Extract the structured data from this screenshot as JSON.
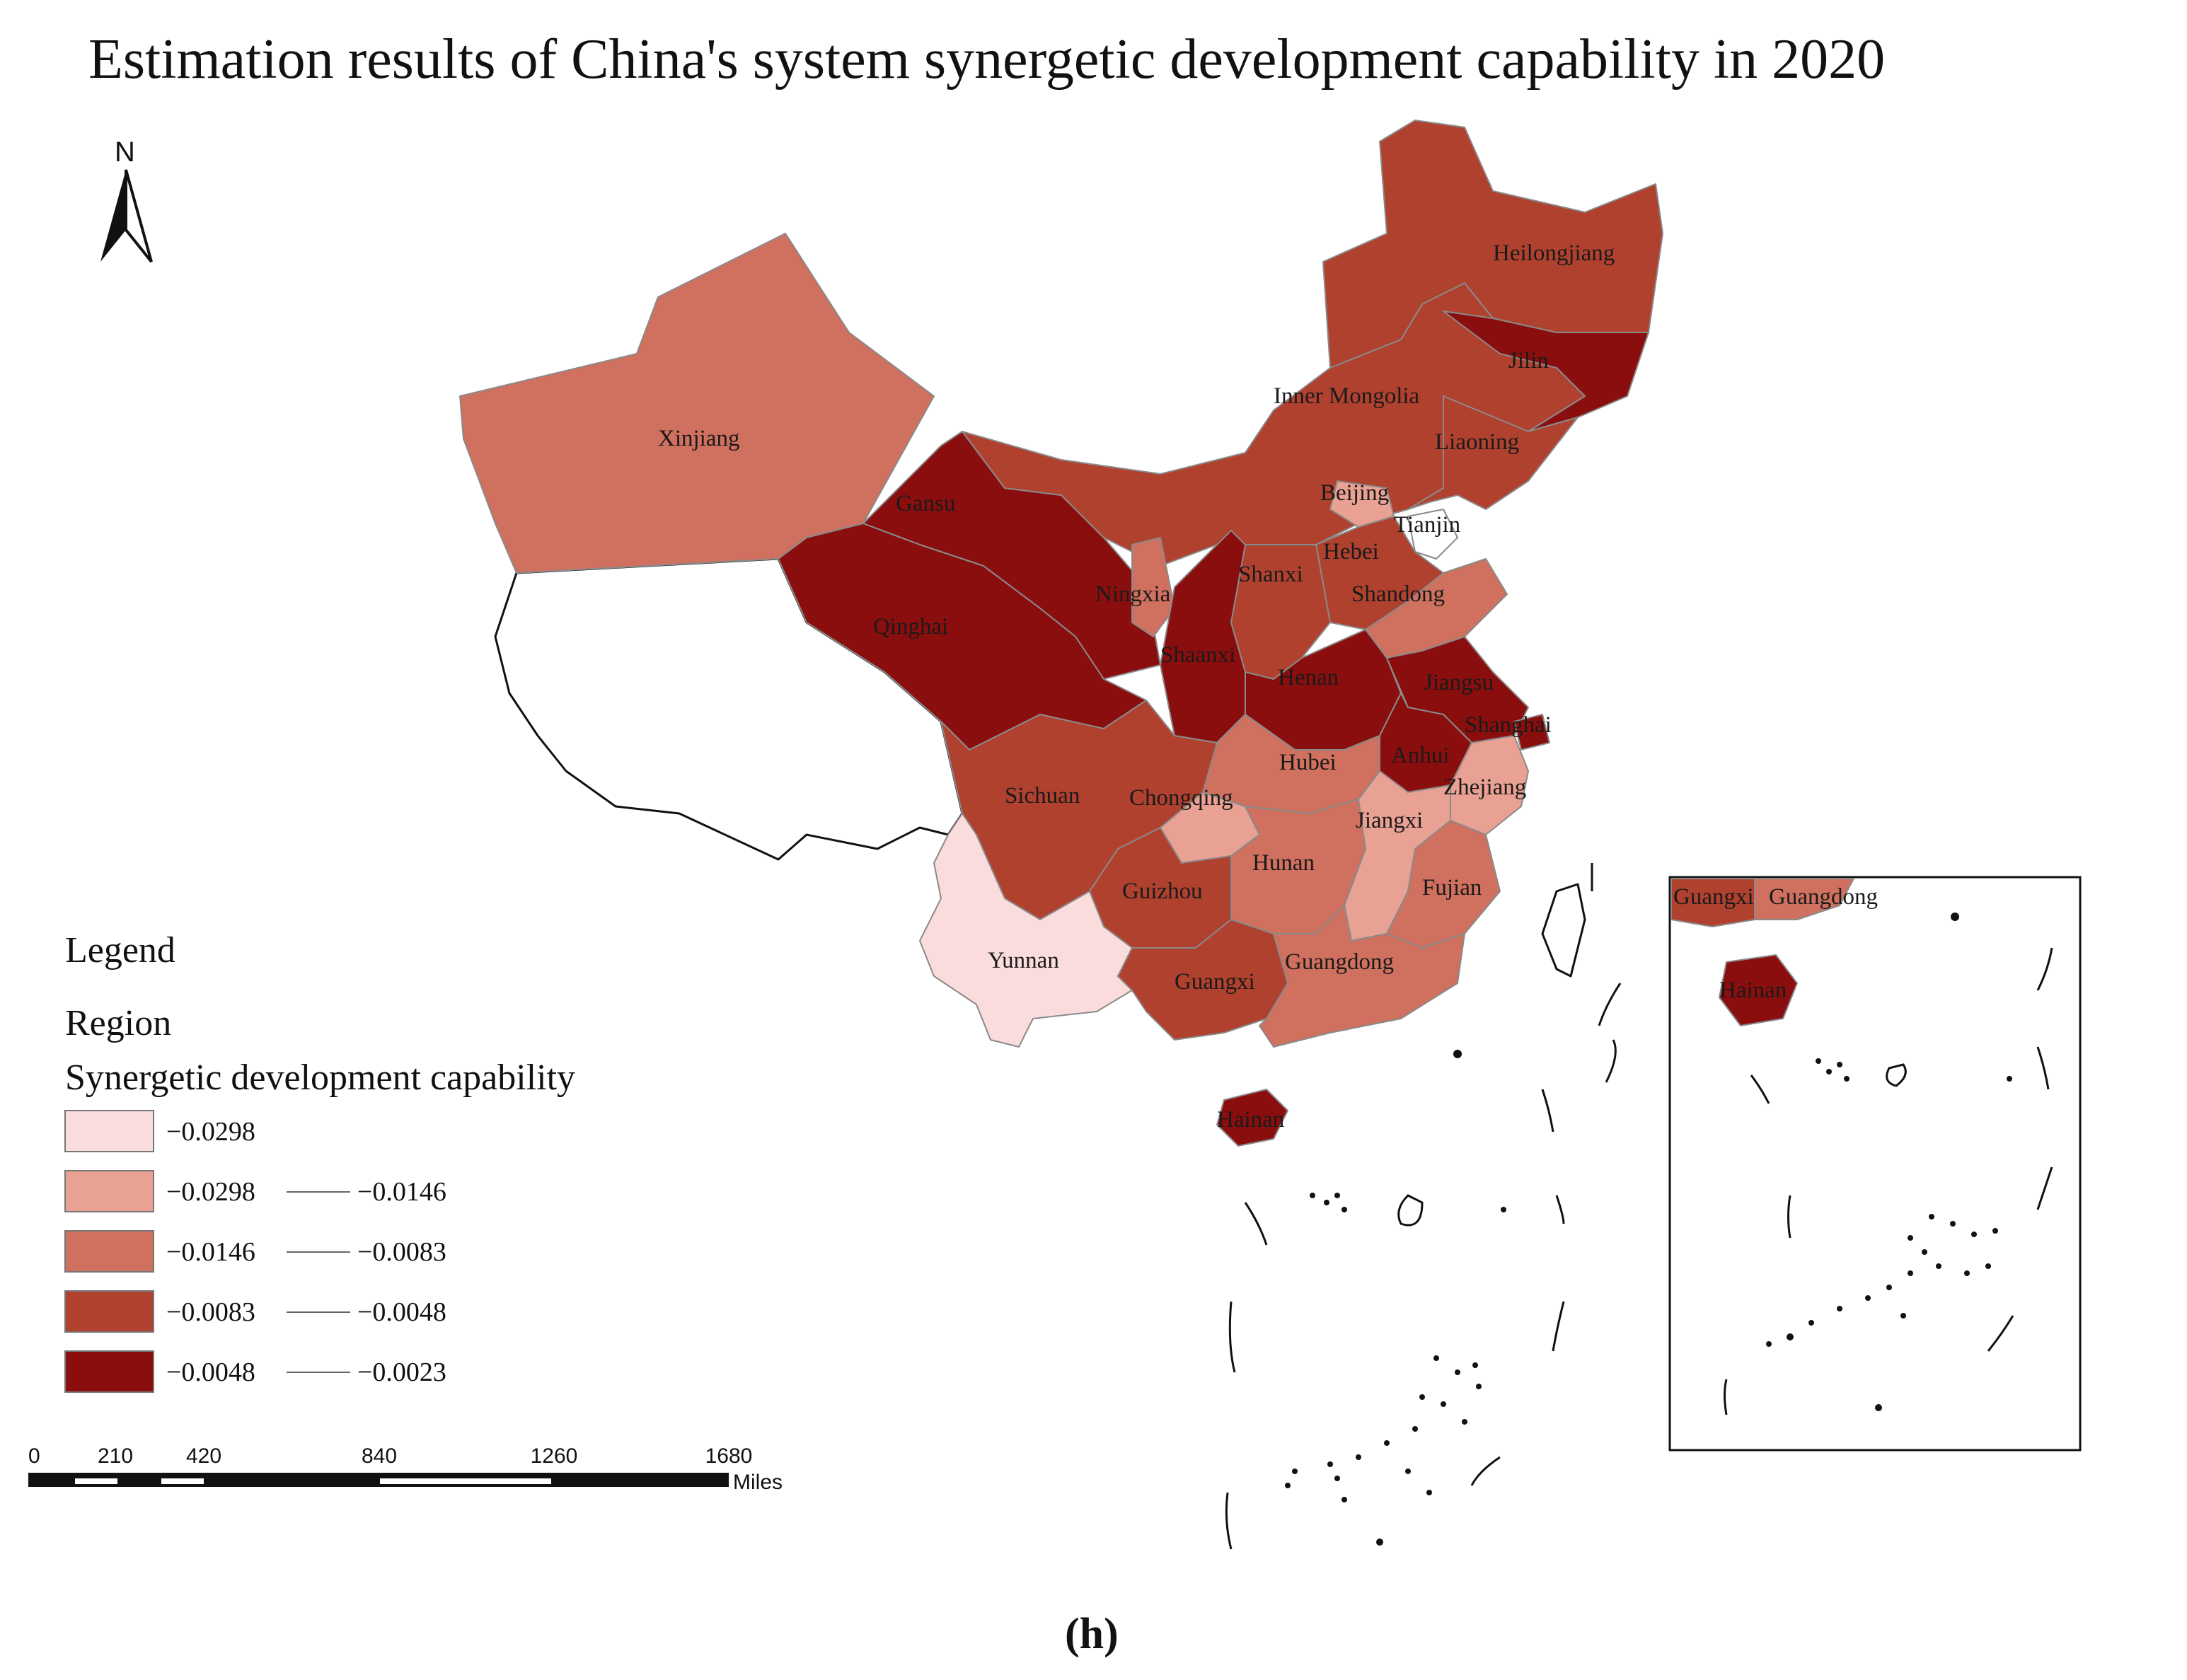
{
  "title": "Estimation results of China's system synergetic development capability in 2020",
  "caption": "(h)",
  "north_arrow": {
    "label": "N",
    "icon": "north-arrow-icon"
  },
  "legend": {
    "heading": "Legend",
    "subheading": "Region",
    "field_title": "Synergetic development capability",
    "classes": [
      {
        "low": "−0.0298",
        "high": "",
        "color": "#fbdcdc"
      },
      {
        "low": "−0.0298",
        "high": "−0.0146",
        "color": "#e8a193"
      },
      {
        "low": "−0.0146",
        "high": "−0.0083",
        "color": "#d0705f"
      },
      {
        "low": "−0.0083",
        "high": "−0.0048",
        "color": "#b0412f"
      },
      {
        "low": "−0.0048",
        "high": "−0.0023",
        "color": "#8b0e0e"
      }
    ]
  },
  "scale_bar": {
    "ticks": [
      "0",
      "210",
      "420",
      "840",
      "1260",
      "1680"
    ],
    "unit": "Miles"
  },
  "provinces": [
    {
      "name": "Heilongjiang",
      "class": 3
    },
    {
      "name": "Jilin",
      "class": 4
    },
    {
      "name": "Liaoning",
      "class": 3
    },
    {
      "name": "Inner Mongolia",
      "class": 3
    },
    {
      "name": "Xinjiang",
      "class": 2
    },
    {
      "name": "Gansu",
      "class": 4
    },
    {
      "name": "Beijing",
      "class": 1
    },
    {
      "name": "Tianjin",
      "class": 0
    },
    {
      "name": "Hebei",
      "class": 3
    },
    {
      "name": "Shanxi",
      "class": 3
    },
    {
      "name": "Ningxia",
      "class": 2
    },
    {
      "name": "Shandong",
      "class": 2
    },
    {
      "name": "Qinghai",
      "class": 4
    },
    {
      "name": "Shaanxi",
      "class": 4
    },
    {
      "name": "Henan",
      "class": 4
    },
    {
      "name": "Jiangsu",
      "class": 4
    },
    {
      "name": "Shanghai",
      "class": 4
    },
    {
      "name": "Anhui",
      "class": 4
    },
    {
      "name": "Hubei",
      "class": 2
    },
    {
      "name": "Zhejiang",
      "class": 1
    },
    {
      "name": "Sichuan",
      "class": 3
    },
    {
      "name": "Chongqing",
      "class": 1
    },
    {
      "name": "Jiangxi",
      "class": 1
    },
    {
      "name": "Hunan",
      "class": 2
    },
    {
      "name": "Guizhou",
      "class": 3
    },
    {
      "name": "Fujian",
      "class": 2
    },
    {
      "name": "Yunnan",
      "class": 0
    },
    {
      "name": "Guangxi",
      "class": 3
    },
    {
      "name": "Guangdong",
      "class": 2
    },
    {
      "name": "Hainan",
      "class": 4
    }
  ],
  "inset": {
    "labels": [
      "Guangxi",
      "Guangdong",
      "Hainan"
    ]
  }
}
